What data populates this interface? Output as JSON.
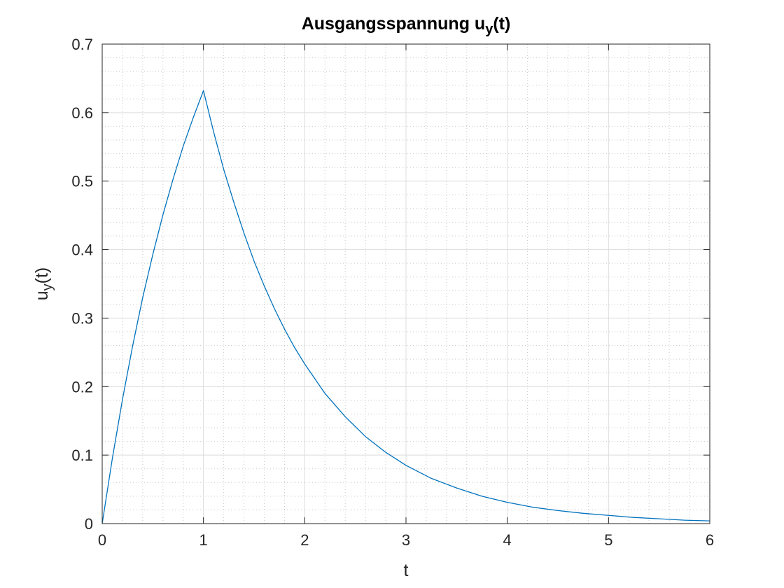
{
  "chart_data": {
    "type": "line",
    "title": "Ausgangsspannung u",
    "title_subscript": "y",
    "title_suffix": "(t)",
    "xlabel": "t",
    "ylabel": "u",
    "ylabel_subscript": "y",
    "ylabel_suffix": "(t)",
    "xlim": [
      0,
      6
    ],
    "ylim": [
      0,
      0.7
    ],
    "xticks": [
      0,
      1,
      2,
      3,
      4,
      5,
      6
    ],
    "xtick_labels": [
      "0",
      "1",
      "2",
      "3",
      "4",
      "5",
      "6"
    ],
    "yticks": [
      0,
      0.1,
      0.2,
      0.3,
      0.4,
      0.5,
      0.6,
      0.7
    ],
    "ytick_labels": [
      "0",
      "0.1",
      "0.2",
      "0.3",
      "0.4",
      "0.5",
      "0.6",
      "0.7"
    ],
    "grid": true,
    "minor_grid": true,
    "series": [
      {
        "color": "#0072BD",
        "x": [
          0,
          0.1,
          0.2,
          0.3,
          0.4,
          0.5,
          0.6,
          0.7,
          0.8,
          0.9,
          1.0,
          1.1,
          1.2,
          1.3,
          1.4,
          1.5,
          1.6,
          1.7,
          1.8,
          1.9,
          2.0,
          2.2,
          2.4,
          2.6,
          2.8,
          3.0,
          3.25,
          3.5,
          3.75,
          4.0,
          4.25,
          4.5,
          4.75,
          5.0,
          5.25,
          5.5,
          5.75,
          6.0
        ],
        "values": [
          0,
          0.095,
          0.181,
          0.259,
          0.33,
          0.393,
          0.451,
          0.503,
          0.551,
          0.593,
          0.632,
          0.572,
          0.517,
          0.469,
          0.424,
          0.383,
          0.347,
          0.314,
          0.284,
          0.257,
          0.233,
          0.19,
          0.156,
          0.127,
          0.104,
          0.085,
          0.066,
          0.052,
          0.04,
          0.031,
          0.024,
          0.019,
          0.015,
          0.012,
          0.009,
          0.007,
          0.005,
          0.004
        ]
      }
    ]
  }
}
